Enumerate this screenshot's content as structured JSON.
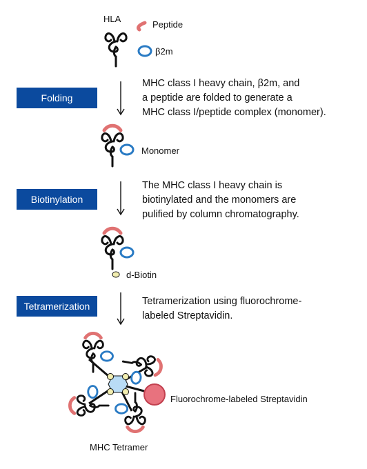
{
  "labels": {
    "hla": "HLA",
    "peptide": "Peptide",
    "b2m": "β2m",
    "monomer": "Monomer",
    "dbiotin": "d-Biotin",
    "fluoro": "Fluorochrome-labeled Streptavidin",
    "tetramer": "MHC Tetramer"
  },
  "steps": [
    {
      "label": "Folding",
      "desc": [
        "MHC class I heavy chain, β2m, and",
        "a peptide are folded to generate a",
        "MHC class I/peptide complex (monomer)."
      ]
    },
    {
      "label": "Biotinylation",
      "desc": [
        "The MHC class I heavy chain is",
        "biotinylated and the monomers are",
        "pulified by column chromatography."
      ]
    },
    {
      "label": "Tetramerization",
      "desc": [
        "Tetramerization using fluorochrome-",
        "labeled Streptavidin."
      ]
    }
  ],
  "colors": {
    "step_box": "#0b4a9e",
    "peptide": "#e07272",
    "b2m": "#2a7bc4",
    "biotin": "#f2eeb0",
    "streptavidin_core": "#b9dcf5",
    "fluorochrome": "#e8727e"
  }
}
